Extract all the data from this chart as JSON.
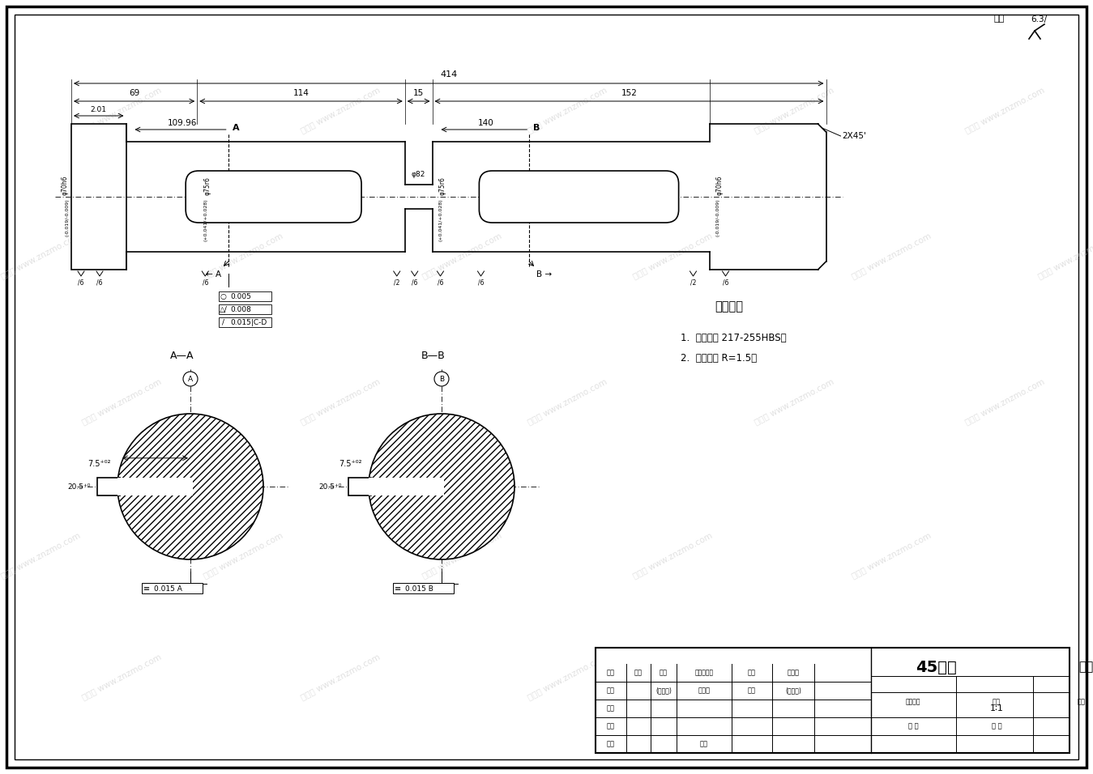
{
  "bg": "#ffffff",
  "lc": "#000000",
  "dim_414": "414",
  "dim_69": "69",
  "dim_114": "114",
  "dim_15": "15",
  "dim_152": "152",
  "dim_201": "2.01",
  "dim_10996": "109.96",
  "dim_140": "140",
  "dim_2x45": "2X45'",
  "label_A": "A",
  "label_B": "B",
  "label_AA": "A—A",
  "label_BB": "B—B",
  "tol1": "0.005",
  "tol2": "0.008",
  "tol3": "0.015",
  "tol3_ref": "C-D",
  "sym_A_015": "0.015",
  "sym_B_015": "0.015",
  "phi_left": "φ70h6(-0.019/-0.009)",
  "phi_body1": "φ75r6(+0.041/+0.028)",
  "phi_neck": "φ82",
  "phi_body2": "φ75r6(+0.041/+0.028)",
  "phi_right": "φ70h6(-0.019/-0.009)",
  "dim_75_kw": "7.5",
  "dim_20_kw": "20.5",
  "tech_title": "技术要求",
  "tech_1": "1.  硬度要求 217-255HBS．",
  "tech_2": "2.  未注圆角 R=1.5．",
  "title_material": "45号鑰",
  "title_part": "主动轴",
  "tb_scale": "1∶1",
  "tb_labels": [
    "标记",
    "数量",
    "分区",
    "更改文件号",
    "签名",
    "年月日",
    "设计",
    "(年月日)",
    "标准化",
    "签名",
    "(年月日)",
    "描图",
    "审核",
    "工艺",
    "批准"
  ],
  "tb_right_labels": [
    "图样标记",
    "重量",
    "比例",
    "共 页",
    "第 页"
  ],
  "wm_text": "知享网 www.znzmo.com",
  "sr_text": "6.3/"
}
